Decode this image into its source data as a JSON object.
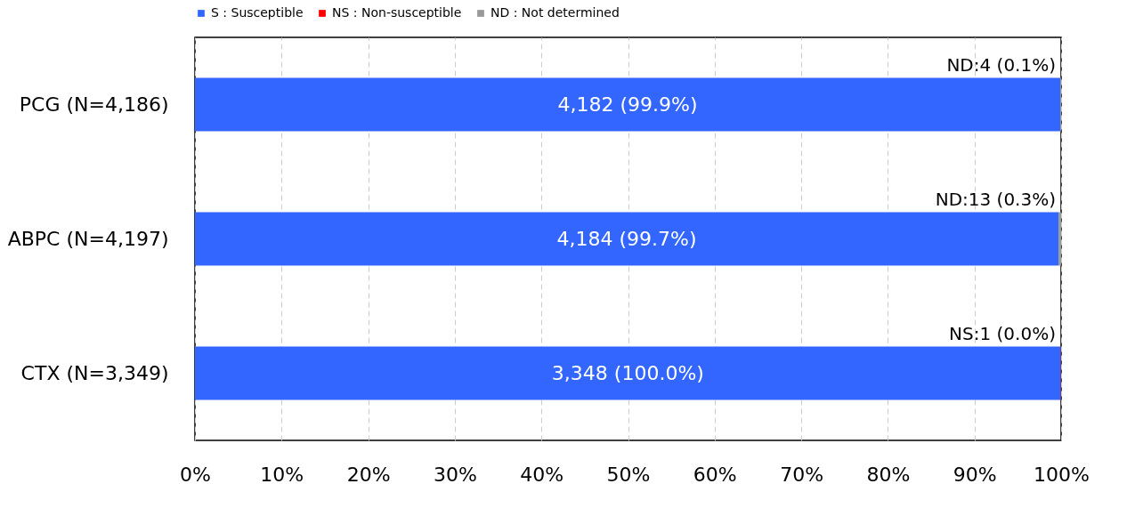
{
  "chart_data": {
    "type": "bar",
    "orientation": "horizontal",
    "stacked": true,
    "legend": "top",
    "categories": [
      "PCG (N=4,186)",
      "ABPC (N=4,197)",
      "CTX (N=3,349)"
    ],
    "series": [
      {
        "name": "S : Susceptible",
        "color": "#3366ff",
        "values": [
          99.9,
          99.7,
          99.97
        ],
        "value_labels": [
          "4,182 (99.9%)",
          "4,184 (99.7%)",
          "3,348 (100.0%)"
        ]
      },
      {
        "name": "NS : Non-susceptible",
        "color": "#ff0000",
        "values": [
          0,
          0,
          0.03
        ],
        "value_labels": [
          null,
          null,
          "NS:1 (0.0%)"
        ]
      },
      {
        "name": "ND : Not determined",
        "color": "#999999",
        "values": [
          0.1,
          0.3,
          0
        ],
        "value_labels": [
          "ND:4 (0.1%)",
          "ND:13 (0.3%)",
          null
        ]
      }
    ],
    "xlim": [
      0,
      100
    ],
    "xticks": [
      {
        "value": 0,
        "label": "0%"
      },
      {
        "value": 10,
        "label": "10%"
      },
      {
        "value": 20,
        "label": "20%"
      },
      {
        "value": 30,
        "label": "30%"
      },
      {
        "value": 40,
        "label": "40%"
      },
      {
        "value": 50,
        "label": "50%"
      },
      {
        "value": 60,
        "label": "60%"
      },
      {
        "value": 70,
        "label": "70%"
      },
      {
        "value": 80,
        "label": "80%"
      },
      {
        "value": 90,
        "label": "90%"
      },
      {
        "value": 100,
        "label": "100%"
      }
    ],
    "grid": "x"
  }
}
